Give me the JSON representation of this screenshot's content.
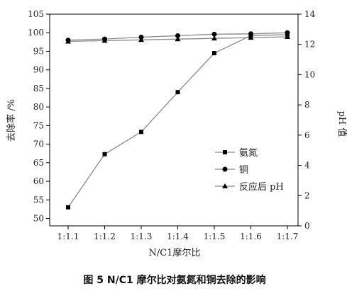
{
  "caption": "图 5   N/C1 摩尔比对氨氮和铜去除的影响",
  "chart_data": {
    "type": "line",
    "categories": [
      "1:1.1",
      "1:1.2",
      "1:1.3",
      "1:1.4",
      "1:1.5",
      "1:1.6",
      "1:1.7"
    ],
    "xlabel": "N/C1摩尔比",
    "ylabel": "去除率 /%",
    "y2label": "pH 值",
    "ylim": [
      48,
      105
    ],
    "yticks": [
      50,
      55,
      60,
      65,
      70,
      75,
      80,
      85,
      90,
      95,
      100,
      105
    ],
    "y2lim": [
      0,
      14
    ],
    "y2ticks": [
      0,
      2,
      4,
      6,
      8,
      10,
      12,
      14
    ],
    "legend_position": "center-right",
    "series": [
      {
        "name": "氨氮",
        "axis": "left",
        "marker": "square",
        "values": [
          53.0,
          67.3,
          73.3,
          84.0,
          94.5,
          99.2,
          99.5
        ]
      },
      {
        "name": "铜",
        "axis": "left",
        "marker": "circle",
        "values": [
          98.0,
          98.3,
          98.8,
          99.2,
          99.6,
          99.7,
          100.0
        ]
      },
      {
        "name": "反应后 pH",
        "axis": "right",
        "marker": "triangle",
        "values": [
          12.2,
          12.25,
          12.3,
          12.35,
          12.4,
          12.45,
          12.5
        ]
      }
    ],
    "colors": {
      "line": "#8a8a8a",
      "marker": "#000000",
      "axis": "#000000"
    }
  }
}
